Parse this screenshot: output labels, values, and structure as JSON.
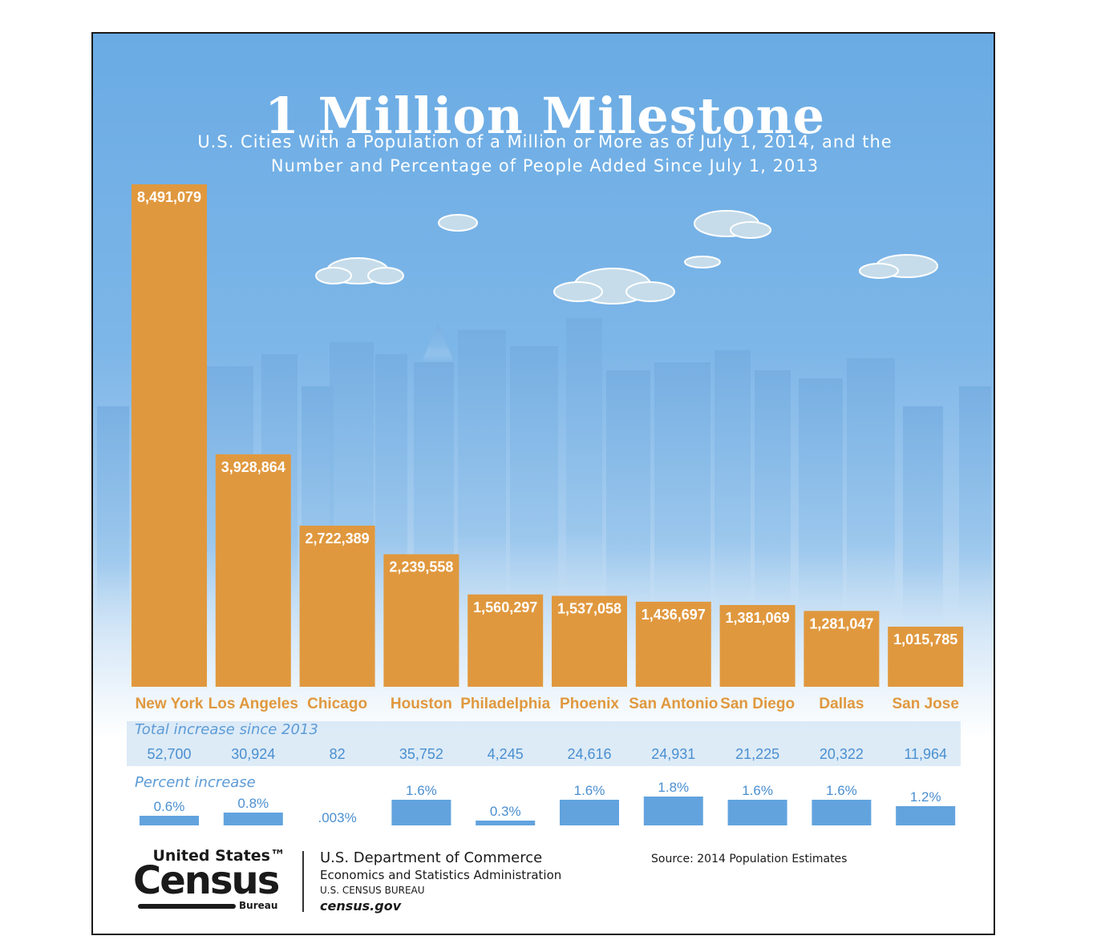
{
  "title": "1 Million Milestone",
  "subtitle_line1": "U.S. Cities With a Population of a Million or More as of July 1, 2014, and the",
  "subtitle_line2": "Number and Percentage of People Added Since July 1, 2013",
  "colors": {
    "bar": "#e0983e",
    "sky_top": "#6eaee6",
    "sky_bottom": "#ffffff",
    "percent_bar": "#62a3de",
    "city_label": "#e0983e",
    "increase_row": "#cfe3f4"
  },
  "chart_data": {
    "type": "bar",
    "title": "1 Million Milestone",
    "categories": [
      "New York",
      "Los Angeles",
      "Chicago",
      "Houston",
      "Philadelphia",
      "Phoenix",
      "San Antonio",
      "San Diego",
      "Dallas",
      "San Jose"
    ],
    "values": [
      8491079,
      3928864,
      2722389,
      2239558,
      1560297,
      1537058,
      1436697,
      1381069,
      1281047,
      1015785
    ],
    "value_labels": [
      "8,491,079",
      "3,928,864",
      "2,722,389",
      "2,239,558",
      "1,560,297",
      "1,537,058",
      "1,436,697",
      "1,381,069",
      "1,281,047",
      "1,015,785"
    ],
    "total_increase_label": "Total increase since 2013",
    "total_increase": [
      "52,700",
      "30,924",
      "82",
      "35,752",
      "4,245",
      "24,616",
      "24,931",
      "21,225",
      "20,322",
      "11,964"
    ],
    "percent_increase_label": "Percent increase",
    "percent_increase": [
      0.6,
      0.8,
      0.003,
      1.6,
      0.3,
      1.6,
      1.8,
      1.6,
      1.6,
      1.2
    ],
    "percent_labels": [
      "0.6%",
      "0.8%",
      ".003%",
      "1.6%",
      "0.3%",
      "1.6%",
      "1.8%",
      "1.6%",
      "1.6%",
      "1.2%"
    ]
  },
  "footer": {
    "logo_line1": "United States™",
    "logo_line2": "Census",
    "logo_line3": "Bureau",
    "dept_line1": "U.S. Department of Commerce",
    "dept_line2": "Economics and Statistics Administration",
    "dept_line3": "U.S. CENSUS BUREAU",
    "dept_line4": "census.gov",
    "source": "Source: 2014 Population Estimates"
  }
}
